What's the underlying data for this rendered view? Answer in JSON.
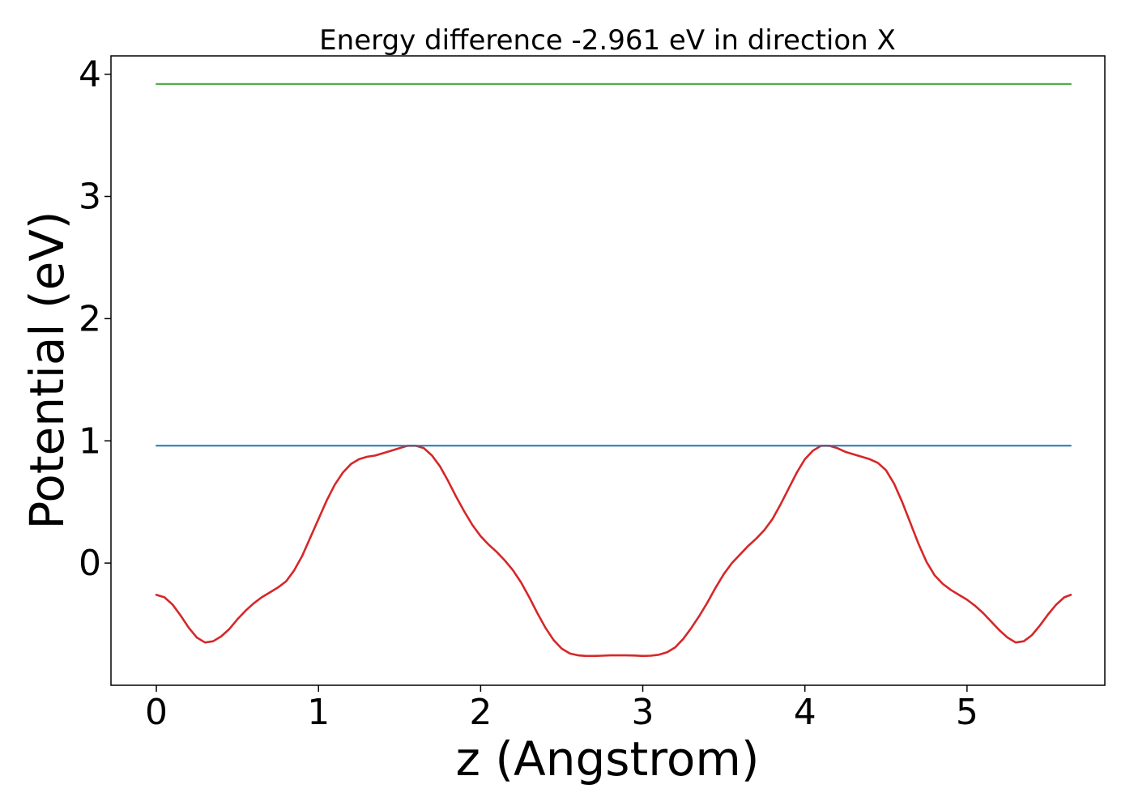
{
  "chart_data": {
    "type": "line",
    "title": "Energy difference -2.961 eV in direction X",
    "xlabel": "z (Angstrom)",
    "ylabel": "Potential (eV)",
    "xlim": [
      -0.28,
      5.85
    ],
    "ylim": [
      -1.0,
      4.15
    ],
    "xticks": [
      0,
      1,
      2,
      3,
      4,
      5
    ],
    "yticks": [
      0,
      1,
      2,
      3,
      4
    ],
    "grid": false,
    "legend": "none",
    "series": [
      {
        "color": "#d62728",
        "x": [
          0.0,
          0.05,
          0.1,
          0.15,
          0.2,
          0.25,
          0.3,
          0.35,
          0.4,
          0.45,
          0.5,
          0.55,
          0.6,
          0.65,
          0.7,
          0.75,
          0.8,
          0.85,
          0.9,
          0.95,
          1.0,
          1.05,
          1.1,
          1.15,
          1.2,
          1.25,
          1.3,
          1.35,
          1.4,
          1.45,
          1.5,
          1.55,
          1.6,
          1.65,
          1.7,
          1.75,
          1.8,
          1.85,
          1.9,
          1.95,
          2.0,
          2.05,
          2.1,
          2.15,
          2.2,
          2.25,
          2.3,
          2.35,
          2.4,
          2.45,
          2.5,
          2.55,
          2.6,
          2.65,
          2.7,
          2.75,
          2.8,
          2.85,
          2.9,
          2.95,
          3.0,
          3.05,
          3.1,
          3.15,
          3.2,
          3.25,
          3.3,
          3.35,
          3.4,
          3.45,
          3.5,
          3.55,
          3.6,
          3.65,
          3.7,
          3.75,
          3.8,
          3.85,
          3.9,
          3.95,
          4.0,
          4.05,
          4.1,
          4.15,
          4.2,
          4.25,
          4.3,
          4.35,
          4.4,
          4.45,
          4.5,
          4.55,
          4.6,
          4.65,
          4.7,
          4.75,
          4.8,
          4.85,
          4.9,
          4.95,
          5.0,
          5.05,
          5.1,
          5.15,
          5.2,
          5.25,
          5.3,
          5.35,
          5.4,
          5.45,
          5.5,
          5.55,
          5.6,
          5.64
        ],
        "y": [
          -0.26,
          -0.28,
          -0.34,
          -0.43,
          -0.53,
          -0.61,
          -0.65,
          -0.64,
          -0.6,
          -0.54,
          -0.46,
          -0.39,
          -0.33,
          -0.28,
          -0.24,
          -0.2,
          -0.15,
          -0.06,
          0.06,
          0.21,
          0.36,
          0.51,
          0.64,
          0.74,
          0.81,
          0.85,
          0.87,
          0.88,
          0.9,
          0.92,
          0.94,
          0.96,
          0.96,
          0.94,
          0.88,
          0.79,
          0.67,
          0.54,
          0.42,
          0.31,
          0.22,
          0.15,
          0.09,
          0.02,
          -0.06,
          -0.16,
          -0.28,
          -0.41,
          -0.53,
          -0.63,
          -0.7,
          -0.74,
          -0.755,
          -0.76,
          -0.76,
          -0.758,
          -0.755,
          -0.755,
          -0.755,
          -0.757,
          -0.76,
          -0.758,
          -0.75,
          -0.73,
          -0.69,
          -0.62,
          -0.53,
          -0.43,
          -0.32,
          -0.2,
          -0.09,
          0.0,
          0.07,
          0.14,
          0.2,
          0.27,
          0.36,
          0.48,
          0.61,
          0.74,
          0.85,
          0.92,
          0.96,
          0.96,
          0.94,
          0.91,
          0.89,
          0.87,
          0.85,
          0.82,
          0.76,
          0.65,
          0.5,
          0.33,
          0.16,
          0.01,
          -0.1,
          -0.17,
          -0.22,
          -0.26,
          -0.3,
          -0.35,
          -0.41,
          -0.48,
          -0.55,
          -0.61,
          -0.65,
          -0.64,
          -0.59,
          -0.51,
          -0.42,
          -0.34,
          -0.28,
          -0.26
        ]
      },
      {
        "color": "#1f77b4",
        "x": [
          0.0,
          5.64
        ],
        "y": [
          0.96,
          0.96
        ]
      },
      {
        "color": "#2ca02c",
        "x": [
          0.0,
          5.64
        ],
        "y": [
          3.92,
          3.92
        ]
      }
    ]
  }
}
